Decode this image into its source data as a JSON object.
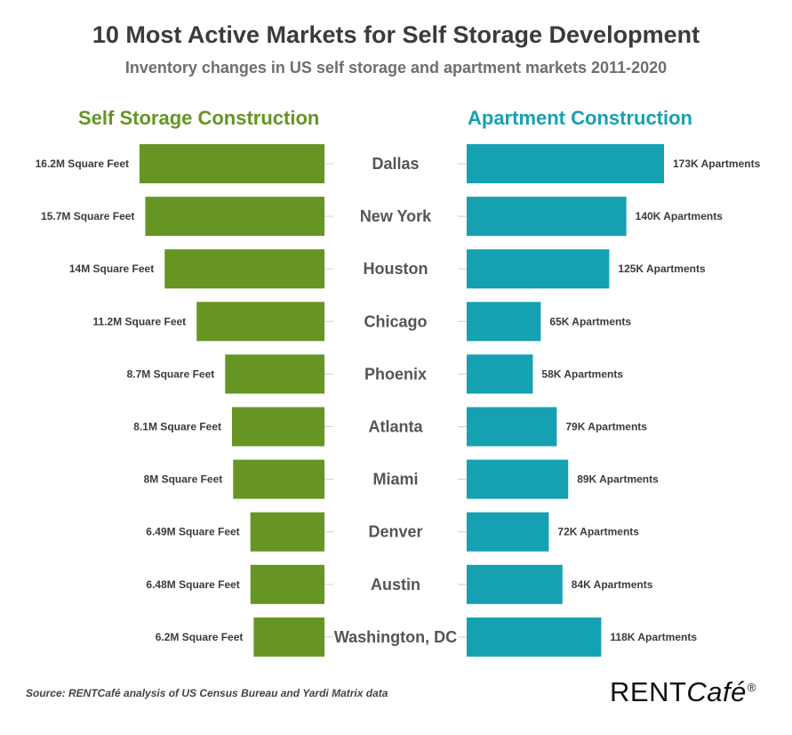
{
  "chart_data": {
    "type": "bar",
    "title": "10 Most Active Markets for Self Storage Development",
    "subtitle": "Inventory changes in US self storage and apartment markets 2011-2020",
    "categories": [
      "Dallas",
      "New York",
      "Houston",
      "Chicago",
      "Phoenix",
      "Atlanta",
      "Miami",
      "Denver",
      "Austin",
      "Washington, DC"
    ],
    "series": [
      {
        "name": "Self Storage Construction",
        "unit": "million square feet",
        "color": "#669524",
        "values": [
          16.2,
          15.7,
          14,
          11.2,
          8.7,
          8.1,
          8,
          6.49,
          6.48,
          6.2
        ],
        "labels": [
          "16.2M Square Feet",
          "15.7M Square Feet",
          "14M Square Feet",
          "11.2M Square Feet",
          "8.7M Square Feet",
          "8.1M Square Feet",
          "8M Square Feet",
          "6.49M Square Feet",
          "6.48M Square Feet",
          "6.2M Square Feet"
        ]
      },
      {
        "name": "Apartment Construction",
        "unit": "thousand apartments",
        "color": "#15a1b1",
        "values": [
          173,
          140,
          125,
          65,
          58,
          79,
          89,
          72,
          84,
          118
        ],
        "labels": [
          "173K Apartments",
          "140K Apartments",
          "125K Apartments",
          "65K Apartments",
          "58K Apartments",
          "79K Apartments",
          "89K Apartments",
          "72K Apartments",
          "84K Apartments",
          "118K Apartments"
        ]
      }
    ]
  },
  "source": "Source: RENTCafé analysis of US Census Bureau and Yardi Matrix data",
  "logo": {
    "main": "RENT",
    "accent": "Café",
    "mark": "®"
  }
}
